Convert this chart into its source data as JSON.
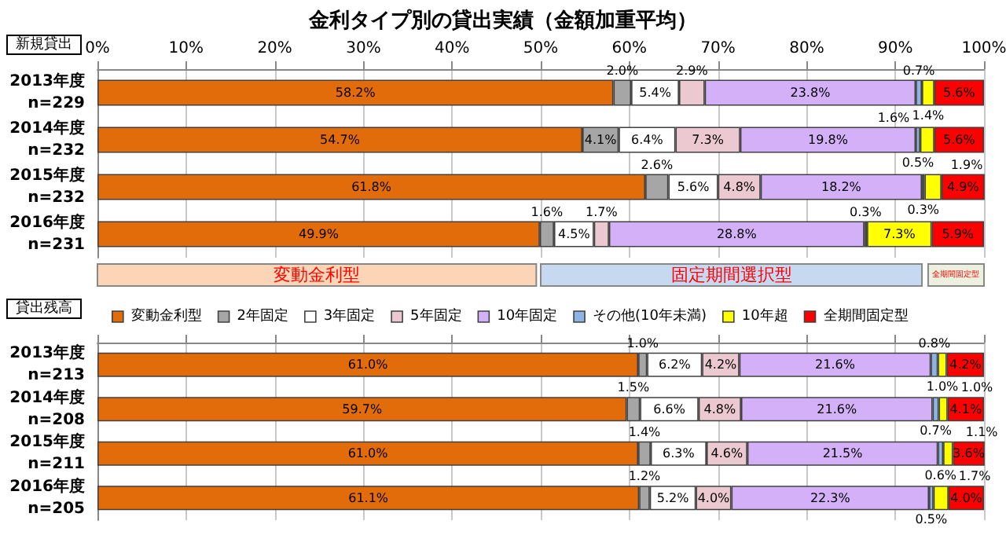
{
  "chart_data": [
    {
      "type": "bar",
      "orientation": "horizontal",
      "stacked": true,
      "title": "金利タイプ別の貸出実績（金額加重平均）",
      "subtitle": "新規貸出",
      "categories": [
        "2013年度\nn=229",
        "2014年度\nn=232",
        "2015年度\nn=232",
        "2016年度\nn=231"
      ],
      "xlim": [
        0,
        100
      ],
      "xticks": [
        {
          "value": 0,
          "label": "0%"
        },
        {
          "value": 10,
          "label": "10%"
        },
        {
          "value": 20,
          "label": "20%"
        },
        {
          "value": 30,
          "label": "30%"
        },
        {
          "value": 40,
          "label": "40%"
        },
        {
          "value": 50,
          "label": "50%"
        },
        {
          "value": 60,
          "label": "60%"
        },
        {
          "value": 70,
          "label": "70%"
        },
        {
          "value": 80,
          "label": "80%"
        },
        {
          "value": 90,
          "label": "90%"
        },
        {
          "value": 100,
          "label": "100%"
        }
      ],
      "grid": "x",
      "legend": false,
      "annotations": [
        "変動金利型",
        "固定期間選択型",
        "全期間固定型"
      ],
      "series": [
        {
          "color": "#e36c0a",
          "values": [
            58.2,
            54.7,
            61.8,
            49.9
          ],
          "value_labels": [
            "58.2%",
            "54.7%",
            "61.8%",
            "49.9%"
          ]
        },
        {
          "color": "#a6a6a6",
          "values": [
            2.0,
            4.1,
            2.6,
            1.6
          ],
          "value_labels": [
            "2.0%",
            "4.1%",
            "2.6%",
            "1.6%"
          ]
        },
        {
          "color": "#ffffff",
          "values": [
            5.4,
            6.4,
            5.6,
            4.5
          ],
          "value_labels": [
            "5.4%",
            "6.4%",
            "5.6%",
            "4.5%"
          ]
        },
        {
          "color": "#ecc8d0",
          "values": [
            2.9,
            7.3,
            4.8,
            1.7
          ],
          "value_labels": [
            "2.9%",
            "7.3%",
            "4.8%",
            "1.7%"
          ]
        },
        {
          "color": "#d4b0f8",
          "values": [
            23.8,
            19.8,
            18.2,
            28.8
          ],
          "value_labels": [
            "23.8%",
            "19.8%",
            "18.2%",
            "28.8%"
          ]
        },
        {
          "color": "#8db4e2",
          "values": [
            0.7,
            0.5,
            0.3,
            0.3
          ],
          "value_labels": [
            "0.7%",
            "0.5%",
            "0.3%",
            "0.3%"
          ]
        },
        {
          "color": "#ffff00",
          "values": [
            1.4,
            1.6,
            1.9,
            7.3
          ],
          "value_labels": [
            "1.4%",
            "1.6%",
            "1.9%",
            "7.3%"
          ]
        },
        {
          "color": "#ff0000",
          "values": [
            5.6,
            5.6,
            4.9,
            5.9
          ],
          "value_labels": [
            "5.6%",
            "5.6%",
            "4.9%",
            "5.9%"
          ]
        }
      ]
    },
    {
      "type": "bar",
      "orientation": "horizontal",
      "stacked": true,
      "title": "貸出残高",
      "categories": [
        "2013年度\nn=213",
        "2014年度\nn=208",
        "2015年度\nn=211",
        "2016年度\nn=205"
      ],
      "xlim": [
        0,
        100
      ],
      "xticks": [
        0,
        10,
        20,
        30,
        40,
        50,
        60,
        70,
        80,
        90,
        100
      ],
      "grid": "x",
      "legend": "top",
      "tick_labels": "y",
      "series": [
        {
          "name": "変動金利型",
          "color": "#e36c0a",
          "values": [
            61.0,
            59.7,
            61.0,
            61.1
          ],
          "value_labels": [
            "61.0%",
            "59.7%",
            "61.0%",
            "61.1%"
          ]
        },
        {
          "name": "2年固定",
          "color": "#a6a6a6",
          "values": [
            1.0,
            1.5,
            1.4,
            1.2
          ],
          "value_labels": [
            "1.0%",
            "1.5%",
            "1.4%",
            "1.2%"
          ]
        },
        {
          "name": "3年固定",
          "color": "#ffffff",
          "values": [
            6.2,
            6.6,
            6.3,
            5.2
          ],
          "value_labels": [
            "6.2%",
            "6.6%",
            "6.3%",
            "5.2%"
          ]
        },
        {
          "name": "5年固定",
          "color": "#ecc8d0",
          "values": [
            4.2,
            4.8,
            4.6,
            4.0
          ],
          "value_labels": [
            "4.2%",
            "4.8%",
            "4.6%",
            "4.0%"
          ]
        },
        {
          "name": "10年固定",
          "color": "#d4b0f8",
          "values": [
            21.6,
            21.6,
            21.5,
            22.3
          ],
          "value_labels": [
            "21.6%",
            "21.6%",
            "21.5%",
            "22.3%"
          ]
        },
        {
          "name": "その他(10年未満)",
          "color": "#8db4e2",
          "values": [
            0.8,
            0.7,
            0.6,
            0.5
          ],
          "value_labels": [
            "0.8%",
            "0.7%",
            "0.6%",
            "0.5%"
          ]
        },
        {
          "name": "10年超",
          "color": "#ffff00",
          "values": [
            1.0,
            1.0,
            1.1,
            1.7
          ],
          "value_labels": [
            "1.0%",
            "1.0%",
            "1.1%",
            "1.7%"
          ]
        },
        {
          "name": "全期間固定型",
          "color": "#ff0000",
          "values": [
            4.2,
            4.1,
            3.6,
            4.0
          ],
          "value_labels": [
            "4.2%",
            "4.1%",
            "3.6%",
            "4.0%"
          ]
        }
      ]
    }
  ]
}
